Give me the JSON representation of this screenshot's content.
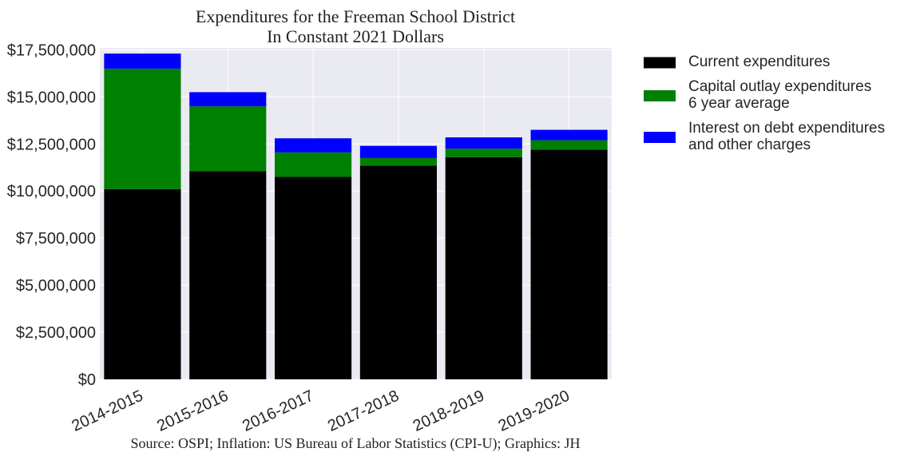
{
  "chart_data": {
    "type": "bar",
    "stacked": true,
    "title": [
      "Expenditures for the Freeman School District",
      "In Constant 2021 Dollars"
    ],
    "categories": [
      "2014-2015",
      "2015-2016",
      "2016-2017",
      "2017-2018",
      "2018-2019",
      "2019-2020"
    ],
    "series": [
      {
        "name": "Current expenditures",
        "legend_lines": [
          "Current expenditures"
        ],
        "color": "#000000",
        "values": [
          10100000,
          11050000,
          10750000,
          11350000,
          11800000,
          12200000
        ]
      },
      {
        "name": "Capital outlay expenditures 6 year average",
        "legend_lines": [
          "Capital outlay expenditures",
          "6 year average"
        ],
        "color": "#008000",
        "values": [
          6400000,
          3450000,
          1300000,
          400000,
          450000,
          500000
        ]
      },
      {
        "name": "Interest on debt expenditures and other charges",
        "legend_lines": [
          "Interest on debt expenditures",
          "and other charges"
        ],
        "color": "#0000ff",
        "values": [
          800000,
          750000,
          750000,
          650000,
          600000,
          550000
        ]
      }
    ],
    "ylim": [
      0,
      17500000
    ],
    "yticks": [
      0,
      2500000,
      5000000,
      7500000,
      10000000,
      12500000,
      15000000,
      17500000
    ],
    "ytick_labels": [
      "$0",
      "$2,500,000",
      "$5,000,000",
      "$7,500,000",
      "$10,000,000",
      "$12,500,000",
      "$15,000,000",
      "$17,500,000"
    ],
    "xlabel": "",
    "ylabel": "",
    "grid": true,
    "legend_position": "outside-right",
    "source_note": "Source: OSPI; Inflation: US Bureau of Labor Statistics (CPI-U); Graphics: JH",
    "colors": {
      "plot_background": "#eaeaf2",
      "grid": "#ffffff"
    }
  }
}
